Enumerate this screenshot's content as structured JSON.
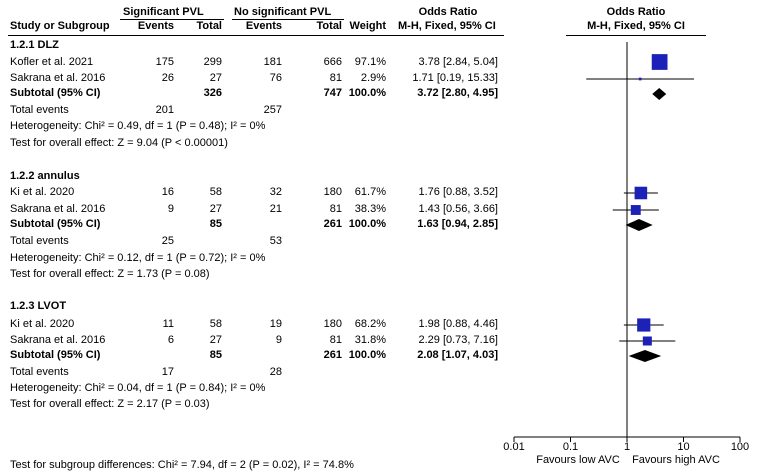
{
  "headers": {
    "study": "Study or Subgroup",
    "group1": "Significant PVL",
    "group2": "No significant PVL",
    "events": "Events",
    "total": "Total",
    "weight": "Weight",
    "or_title": "Odds Ratio",
    "or_method": "M-H, Fixed, 95% CI",
    "plot_title": "Odds Ratio",
    "plot_method": "M-H, Fixed, 95% CI"
  },
  "rows": [
    {
      "kind": "group",
      "label": "1.2.1 DLZ"
    },
    {
      "kind": "study",
      "label": "Kofler et al. 2021",
      "e1": "175",
      "t1": "299",
      "e2": "181",
      "t2": "666",
      "w": "97.1%",
      "ci": "3.78 [2.84, 5.04]"
    },
    {
      "kind": "study",
      "label": "Sakrana et al. 2016",
      "e1": "26",
      "t1": "27",
      "e2": "76",
      "t2": "81",
      "w": "2.9%",
      "ci": "1.71 [0.19, 15.33]"
    },
    {
      "kind": "subtotal",
      "label": "Subtotal (95% CI)",
      "t1": "326",
      "t2": "747",
      "w": "100.0%",
      "ci": "3.72 [2.80, 4.95]"
    },
    {
      "kind": "events",
      "label": "Total events",
      "e1": "201",
      "e2": "257"
    },
    {
      "kind": "note",
      "label": "Heterogeneity: Chi² = 0.49, df = 1 (P = 0.48); I² = 0%"
    },
    {
      "kind": "note",
      "label": "Test for overall effect: Z = 9.04 (P < 0.00001)"
    },
    {
      "kind": "blank"
    },
    {
      "kind": "group",
      "label": "1.2.2 annulus"
    },
    {
      "kind": "study",
      "label": "Ki et al. 2020",
      "e1": "16",
      "t1": "58",
      "e2": "32",
      "t2": "180",
      "w": "61.7%",
      "ci": "1.76 [0.88, 3.52]"
    },
    {
      "kind": "study",
      "label": "Sakrana et al. 2016",
      "e1": "9",
      "t1": "27",
      "e2": "21",
      "t2": "81",
      "w": "38.3%",
      "ci": "1.43 [0.56, 3.66]"
    },
    {
      "kind": "subtotal",
      "label": "Subtotal (95% CI)",
      "t1": "85",
      "t2": "261",
      "w": "100.0%",
      "ci": "1.63 [0.94, 2.85]"
    },
    {
      "kind": "events",
      "label": "Total events",
      "e1": "25",
      "e2": "53"
    },
    {
      "kind": "note",
      "label": "Heterogeneity: Chi² = 0.12, df = 1 (P = 0.72); I² = 0%"
    },
    {
      "kind": "note",
      "label": "Test for overall effect: Z = 1.73 (P = 0.08)"
    },
    {
      "kind": "blank"
    },
    {
      "kind": "group",
      "label": "1.2.3 LVOT"
    },
    {
      "kind": "study",
      "label": "Ki et al. 2020",
      "e1": "11",
      "t1": "58",
      "e2": "19",
      "t2": "180",
      "w": "68.2%",
      "ci": "1.98 [0.88, 4.46]"
    },
    {
      "kind": "study",
      "label": "Sakrana et al. 2016",
      "e1": "6",
      "t1": "27",
      "e2": "9",
      "t2": "81",
      "w": "31.8%",
      "ci": "2.29 [0.73, 7.16]"
    },
    {
      "kind": "subtotal",
      "label": "Subtotal (95% CI)",
      "t1": "85",
      "t2": "261",
      "w": "100.0%",
      "ci": "2.08 [1.07, 4.03]"
    },
    {
      "kind": "events",
      "label": "Total events",
      "e1": "17",
      "e2": "28"
    },
    {
      "kind": "note",
      "label": "Heterogeneity: Chi² = 0.04, df = 1 (P = 0.84); I² = 0%"
    },
    {
      "kind": "note",
      "label": "Test for overall effect: Z = 2.17 (P = 0.03)"
    }
  ],
  "footer": {
    "subgroup_test": "Test for subgroup differences: Chi² = 7.94, df = 2 (P = 0.02), I² = 74.8%"
  },
  "colors": {
    "marker": "#1c22b8",
    "diamond": "#000000",
    "line": "#000000"
  },
  "chart_data": {
    "type": "forest",
    "title": "Odds Ratio",
    "subtitle": "M-H, Fixed, 95% CI",
    "scale": "log",
    "xlim": [
      0.01,
      100
    ],
    "ticks": [
      0.01,
      0.1,
      1,
      10,
      100
    ],
    "tick_labels": [
      "0.01",
      "0.1",
      "1",
      "10",
      "100"
    ],
    "null_line": 1,
    "xlabel_left": "Favours low AVC",
    "xlabel_right": "Favours high AVC",
    "studies": [
      {
        "row": 1,
        "or": 3.78,
        "lo": 2.84,
        "hi": 5.04,
        "weight": 97.1
      },
      {
        "row": 2,
        "or": 1.71,
        "lo": 0.19,
        "hi": 15.33,
        "weight": 2.9
      },
      {
        "row": 9,
        "or": 1.76,
        "lo": 0.88,
        "hi": 3.52,
        "weight": 61.7
      },
      {
        "row": 10,
        "or": 1.43,
        "lo": 0.56,
        "hi": 3.66,
        "weight": 38.3
      },
      {
        "row": 17,
        "or": 1.98,
        "lo": 0.88,
        "hi": 4.46,
        "weight": 68.2
      },
      {
        "row": 18,
        "or": 2.29,
        "lo": 0.73,
        "hi": 7.16,
        "weight": 31.8
      }
    ],
    "subtotals": [
      {
        "row": 3,
        "or": 3.72,
        "lo": 2.8,
        "hi": 4.95
      },
      {
        "row": 11,
        "or": 1.63,
        "lo": 0.94,
        "hi": 2.85
      },
      {
        "row": 19,
        "or": 2.08,
        "lo": 1.07,
        "hi": 4.03
      }
    ]
  }
}
